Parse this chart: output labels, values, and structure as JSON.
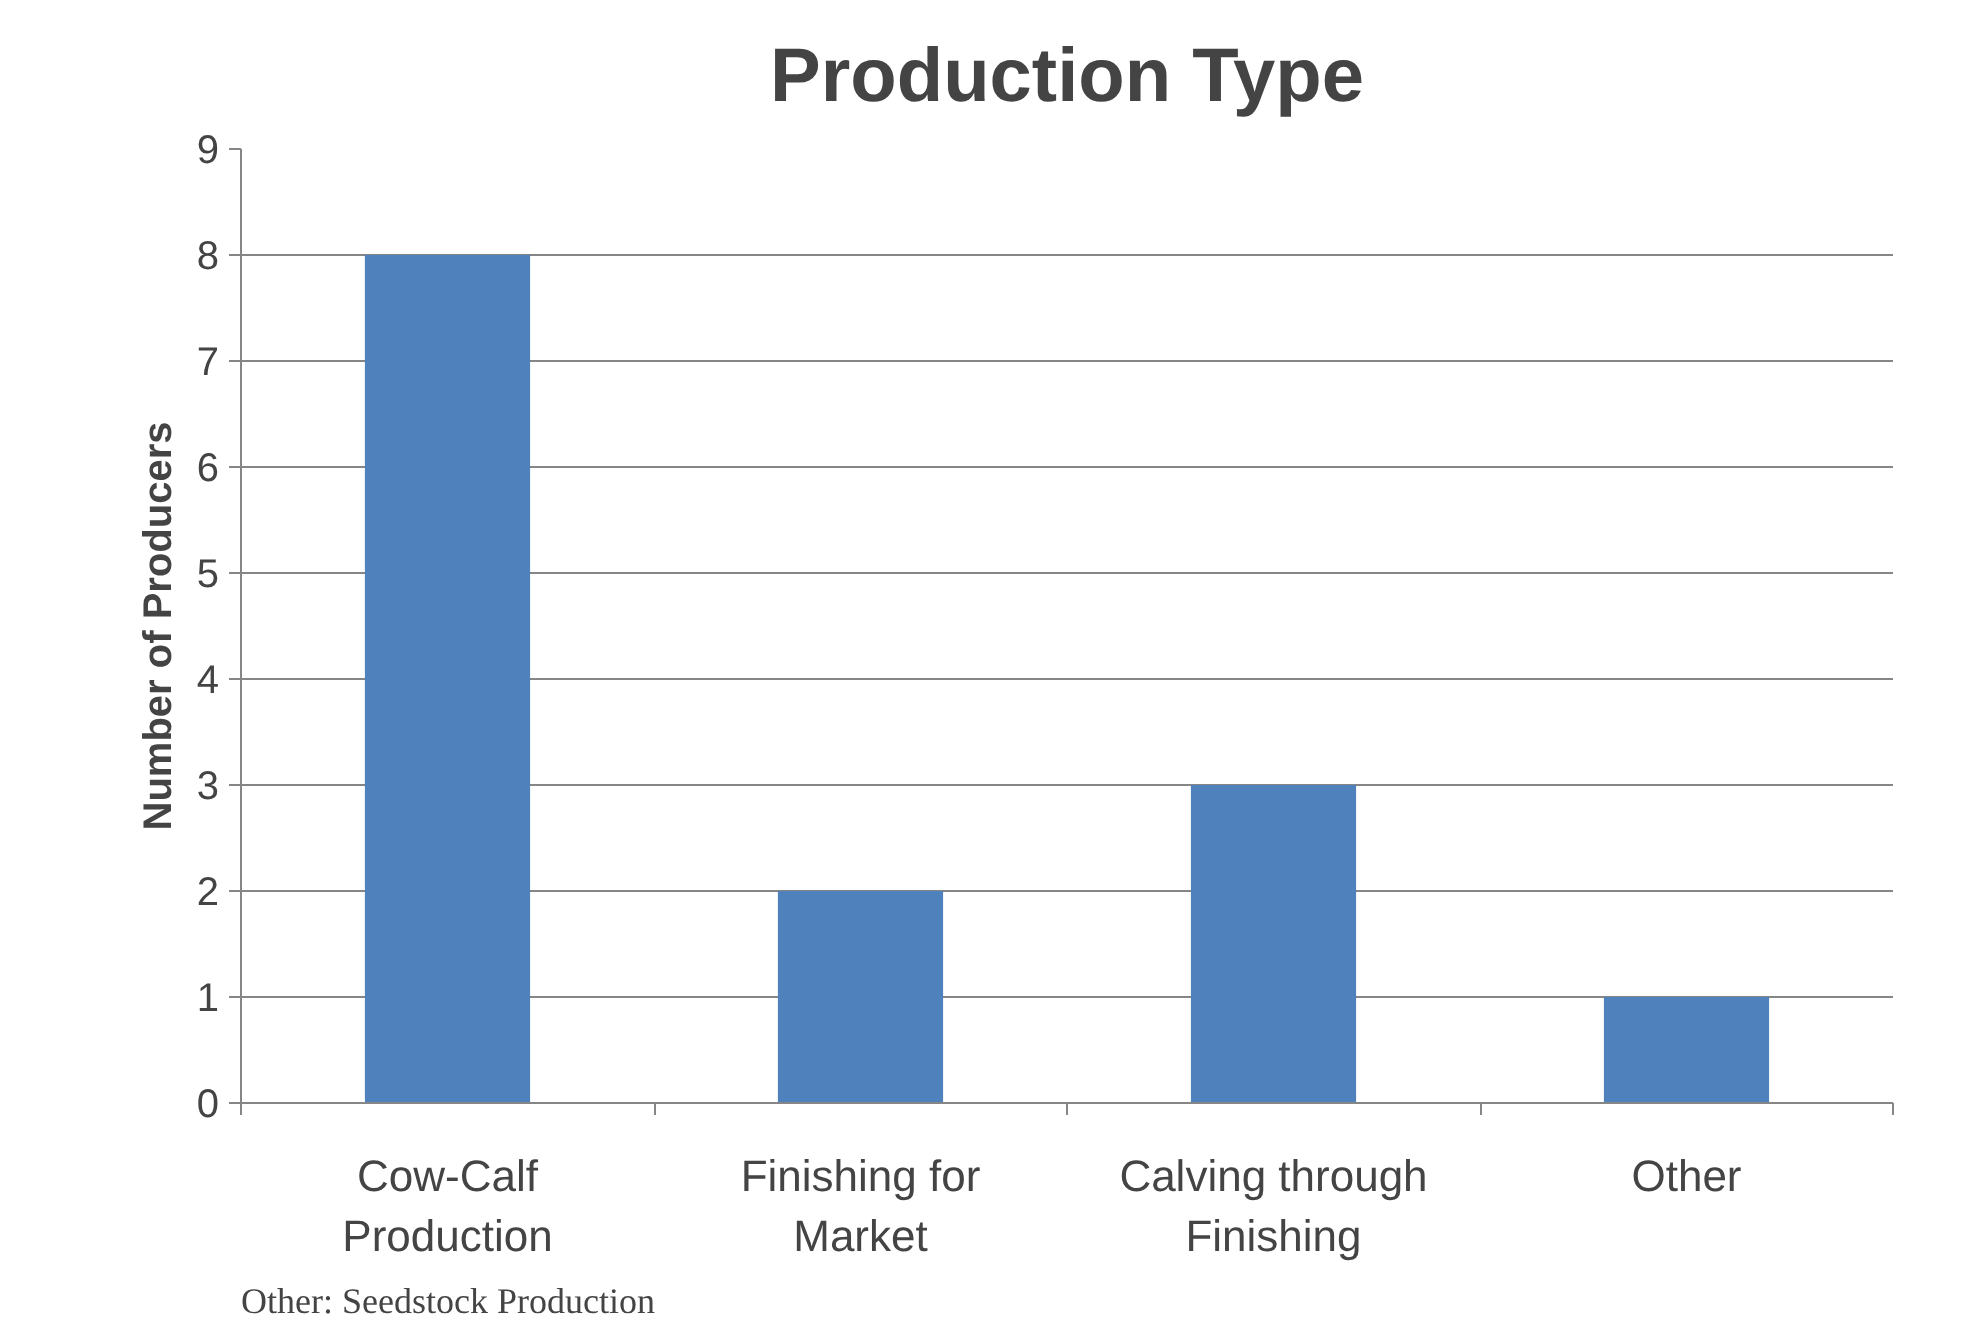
{
  "chart_data": {
    "type": "bar",
    "title": "Production Type",
    "ylabel": "Number of Producers",
    "categories": [
      "Cow-Calf Production",
      "Finishing for Market",
      "Calving through Finishing",
      "Other"
    ],
    "values": [
      8,
      2,
      3,
      1
    ],
    "color": "#4f81bd",
    "ylim": [
      0,
      9
    ],
    "yticks": [
      0,
      1,
      2,
      3,
      4,
      5,
      6,
      7,
      8,
      9
    ],
    "grid": "y",
    "annotations": [
      "Other: Seedstock Production"
    ]
  }
}
